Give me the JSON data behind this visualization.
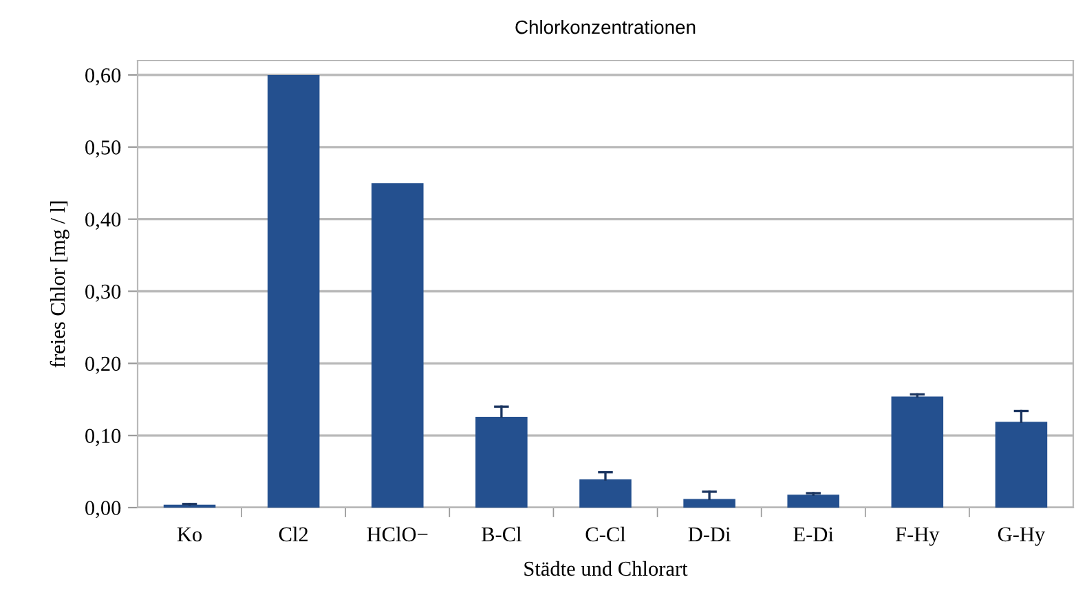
{
  "chart_data": {
    "type": "bar",
    "title": "Chlorkonzentrationen",
    "xlabel": "Städte und Chlorart",
    "ylabel": "freies Chlor [mg / l]",
    "categories": [
      "Ko",
      "Cl2",
      "HClO−",
      "B-Cl",
      "C-Cl",
      "D-Di",
      "E-Di",
      "F-Hy",
      "G-Hy"
    ],
    "values": [
      0.004,
      0.6,
      0.45,
      0.126,
      0.039,
      0.012,
      0.018,
      0.154,
      0.119
    ],
    "errors": [
      [
        0.004,
        0.005
      ],
      null,
      null,
      [
        0.126,
        0.14
      ],
      [
        0.039,
        0.049
      ],
      [
        0.012,
        0.022
      ],
      [
        0.018,
        0.02
      ],
      [
        0.154,
        0.157
      ],
      [
        0.119,
        0.134
      ]
    ],
    "color": "#24508f",
    "ylim": [
      0,
      0.62
    ],
    "yticks": [
      {
        "value": 0,
        "label": "0,00"
      },
      {
        "value": 0.1,
        "label": "0,10"
      },
      {
        "value": 0.2,
        "label": "0,20"
      },
      {
        "value": 0.3,
        "label": "0,30"
      },
      {
        "value": 0.4,
        "label": "0,40"
      },
      {
        "value": 0.5,
        "label": "0,50"
      },
      {
        "value": 0.6,
        "label": "0,60"
      }
    ],
    "grid": "y",
    "legend": false
  }
}
